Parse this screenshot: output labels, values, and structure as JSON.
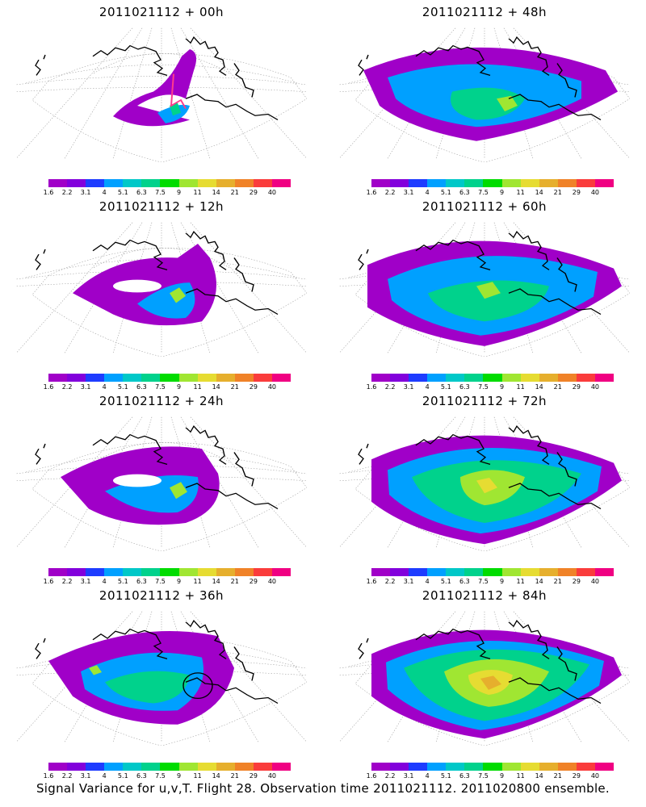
{
  "panels": [
    {
      "title": "2011021112 + 00h",
      "lead": 0
    },
    {
      "title": "2011021112 + 48h",
      "lead": 48
    },
    {
      "title": "2011021112 + 12h",
      "lead": 12
    },
    {
      "title": "2011021112 + 60h",
      "lead": 60
    },
    {
      "title": "2011021112 + 24h",
      "lead": 24
    },
    {
      "title": "2011021112 + 72h",
      "lead": 72
    },
    {
      "title": "2011021112 + 36h",
      "lead": 36
    },
    {
      "title": "2011021112 + 84h",
      "lead": 84
    }
  ],
  "colorbar": {
    "labels": [
      "1.6",
      "2.2",
      "3.1",
      "4",
      "5.1",
      "6.3",
      "7.5",
      "9",
      "11",
      "14",
      "21",
      "29",
      "40"
    ],
    "colors": [
      "#a000c8",
      "#8200dc",
      "#1e3cff",
      "#00a0ff",
      "#00c8c8",
      "#00d28c",
      "#00dc00",
      "#a0e632",
      "#e6dc32",
      "#e6af2d",
      "#f08228",
      "#fa3c3c",
      "#f00082"
    ]
  },
  "caption": "Signal Variance for u,v,T. Flight 28. Observation time 2011021112. 2011020800 ensemble."
}
